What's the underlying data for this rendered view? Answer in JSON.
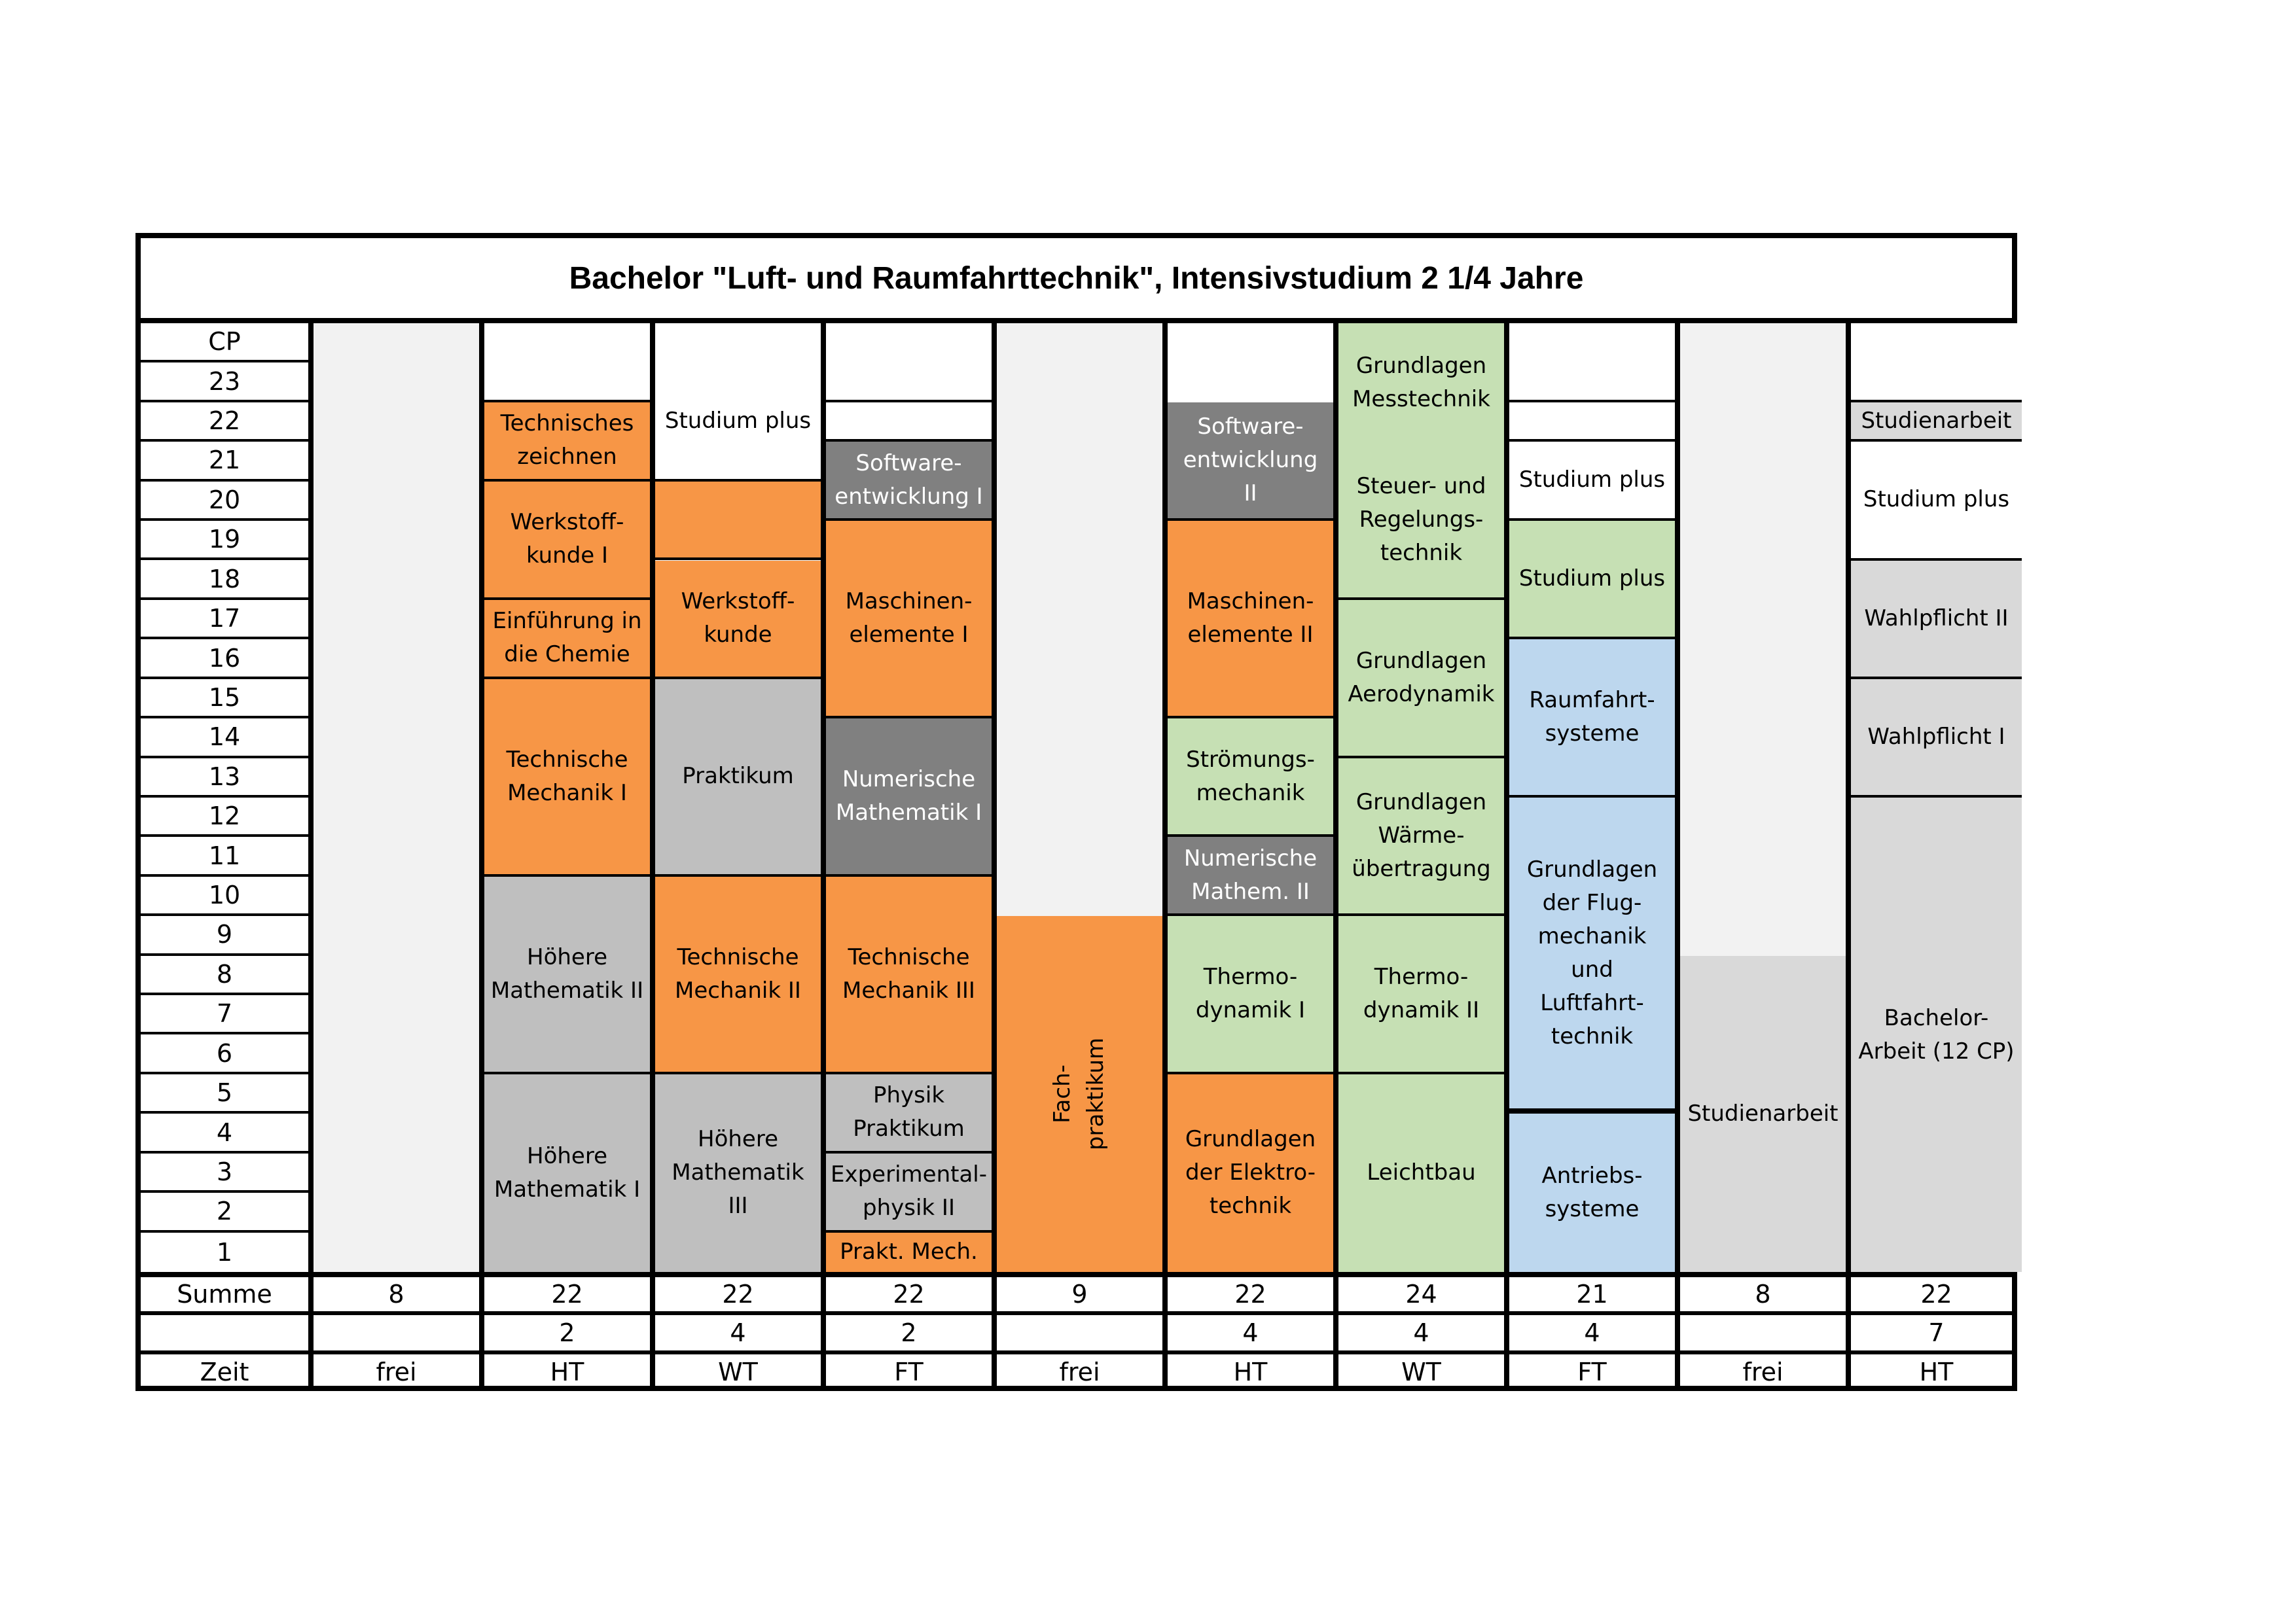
{
  "title": "Bachelor \"Luft- und Raumfahrttechnik\", Intensivstudium 2 1/4 Jahre",
  "axis": {
    "header": "CP",
    "labels": [
      "23",
      "22",
      "21",
      "20",
      "19",
      "18",
      "17",
      "16",
      "15",
      "14",
      "13",
      "12",
      "11",
      "10",
      "9",
      "8",
      "7",
      "6",
      "5",
      "4",
      "3",
      "2",
      "1"
    ]
  },
  "colors": {
    "orange": "#F79646",
    "dark_gray": "#808080",
    "mid_gray": "#BFBFBF",
    "light_gray": "#D9D9D9",
    "free_gray": "#F2F2F2",
    "green": "#C6E0B4",
    "blue": "#BDD7EE",
    "white": "#FFFFFF"
  },
  "columns": [
    {
      "blocks": [
        {
          "from": 0,
          "to": 24,
          "label": "",
          "color": "free"
        }
      ]
    },
    {
      "blocks": [
        {
          "from": 0,
          "to": 5,
          "label": "Höhere\nMathematik I",
          "color": "mid"
        },
        {
          "from": 5,
          "to": 10,
          "label": "Höhere\nMathematik II",
          "color": "mid"
        },
        {
          "from": 10,
          "to": 15,
          "label": "Technische\nMechanik I",
          "color": "orange"
        },
        {
          "from": 15,
          "to": 17,
          "label": "Einführung in\ndie Chemie",
          "color": "orange"
        },
        {
          "from": 17,
          "to": 20,
          "label": "Werkstoff-\nkunde I",
          "color": "orange"
        },
        {
          "from": 20,
          "to": 22,
          "label": "Technisches\nzeichnen",
          "color": "orange"
        },
        {
          "from": 22,
          "to": 23,
          "label": "",
          "color": "white"
        },
        {
          "from": 23,
          "to": 24,
          "label": "",
          "color": "white"
        }
      ]
    },
    {
      "blocks": [
        {
          "from": 0,
          "to": 5,
          "label": "Höhere\nMathematik\nIII",
          "color": "mid"
        },
        {
          "from": 5,
          "to": 10,
          "label": "Technische\nMechanik II",
          "color": "orange"
        },
        {
          "from": 10,
          "to": 15,
          "label": "Praktikum",
          "color": "mid"
        },
        {
          "from": 15,
          "to": 18,
          "label": "Werkstoff-\nkunde",
          "color": "orange"
        },
        {
          "from": 18,
          "to": 20,
          "label": "",
          "color": "orange"
        },
        {
          "from": 20,
          "to": 23,
          "label": "Studium plus",
          "color": "white"
        },
        {
          "from": 23,
          "to": 24,
          "label": "",
          "color": "white"
        }
      ]
    },
    {
      "blocks": [
        {
          "from": 0,
          "to": 1,
          "label": "Prakt. Mech.",
          "color": "orange"
        },
        {
          "from": 1,
          "to": 3,
          "label": "Experimental-\nphysik II",
          "color": "mid"
        },
        {
          "from": 3,
          "to": 5,
          "label": "Physik\nPraktikum",
          "color": "mid"
        },
        {
          "from": 5,
          "to": 10,
          "label": "Technische\nMechanik III",
          "color": "orange"
        },
        {
          "from": 10,
          "to": 14,
          "label": "Numerische\nMathematik I",
          "color": "dark",
          "light_text": true
        },
        {
          "from": 14,
          "to": 19,
          "label": "Maschinen-\nelemente I",
          "color": "orange"
        },
        {
          "from": 19,
          "to": 21,
          "label": "Software-\nentwicklung I",
          "color": "dark",
          "light_text": true
        },
        {
          "from": 21,
          "to": 22,
          "label": "",
          "color": "white"
        },
        {
          "from": 22,
          "to": 23,
          "label": "",
          "color": "white"
        },
        {
          "from": 23,
          "to": 24,
          "label": "",
          "color": "white"
        }
      ]
    },
    {
      "blocks": [
        {
          "from": 0,
          "to": 9,
          "label": "Fach-\npraktikum",
          "color": "orange",
          "vertical": true
        },
        {
          "from": 9,
          "to": 24,
          "label": "",
          "color": "free"
        }
      ]
    },
    {
      "blocks": [
        {
          "from": 0,
          "to": 5,
          "label": "Grundlagen\nder Elektro-\ntechnik",
          "color": "orange"
        },
        {
          "from": 5,
          "to": 9,
          "label": "Thermo-\ndynamik I",
          "color": "green"
        },
        {
          "from": 9,
          "to": 11,
          "label": "Numerische\nMathem. II",
          "color": "dark",
          "light_text": true
        },
        {
          "from": 11,
          "to": 14,
          "label": "Strömungs-\nmechanik",
          "color": "green"
        },
        {
          "from": 14,
          "to": 19,
          "label": "Maschinen-\nelemente II",
          "color": "orange"
        },
        {
          "from": 19,
          "to": 22,
          "label": "Software-\nentwicklung\nII",
          "color": "dark",
          "light_text": true
        },
        {
          "from": 22,
          "to": 24,
          "label": "",
          "color": "white"
        }
      ]
    },
    {
      "blocks": [
        {
          "from": 0,
          "to": 5,
          "label": "Leichtbau",
          "color": "green"
        },
        {
          "from": 5,
          "to": 9,
          "label": "Thermo-\ndynamik II",
          "color": "green"
        },
        {
          "from": 9,
          "to": 13,
          "label": "Grundlagen\nWärme-\nübertragung",
          "color": "green"
        },
        {
          "from": 13,
          "to": 17,
          "label": "Grundlagen\nAerodynamik",
          "color": "green"
        },
        {
          "from": 17,
          "to": 21,
          "label": "Steuer- und\nRegelungs-\ntechnik",
          "color": "green"
        },
        {
          "from": 21,
          "to": 24,
          "label": "Grundlagen\nMesstechnik",
          "color": "green"
        }
      ]
    },
    {
      "blocks": [
        {
          "from": 0,
          "to": 4,
          "label": "Antriebs-\nsysteme",
          "color": "blue",
          "thick": true
        },
        {
          "from": 4,
          "to": 12,
          "label": "Grundlagen\nder Flug-\nmechanik und\nLuftfahrt-\ntechnik",
          "color": "blue",
          "thick": true
        },
        {
          "from": 12,
          "to": 16,
          "label": "Raumfahrt-\nsysteme",
          "color": "blue"
        },
        {
          "from": 16,
          "to": 19,
          "label": "Studium plus",
          "color": "green"
        },
        {
          "from": 19,
          "to": 21,
          "label": "Studium plus",
          "color": "white"
        },
        {
          "from": 21,
          "to": 22,
          "label": "",
          "color": "white"
        },
        {
          "from": 22,
          "to": 23,
          "label": "",
          "color": "white"
        },
        {
          "from": 23,
          "to": 24,
          "label": "",
          "color": "white"
        }
      ]
    },
    {
      "blocks": [
        {
          "from": 0,
          "to": 8,
          "label": "Studienarbeit",
          "color": "light"
        },
        {
          "from": 8,
          "to": 24,
          "label": "",
          "color": "free"
        }
      ]
    },
    {
      "blocks": [
        {
          "from": 0,
          "to": 12,
          "label": "Bachelor-\nArbeit (12 CP)",
          "color": "light"
        },
        {
          "from": 12,
          "to": 15,
          "label": "Wahlpflicht I",
          "color": "light"
        },
        {
          "from": 15,
          "to": 18,
          "label": "Wahlpflicht II",
          "color": "light"
        },
        {
          "from": 18,
          "to": 21,
          "label": "Studium plus",
          "color": "white"
        },
        {
          "from": 21,
          "to": 22,
          "label": "Studienarbeit",
          "color": "light"
        },
        {
          "from": 22,
          "to": 23,
          "label": "",
          "color": "white"
        },
        {
          "from": 23,
          "to": 24,
          "label": "",
          "color": "white"
        }
      ]
    }
  ],
  "summary": {
    "summe": {
      "label": "Summe",
      "values": [
        "8",
        "22",
        "22",
        "22",
        "9",
        "22",
        "24",
        "21",
        "8",
        "22"
      ]
    },
    "extra": {
      "label": "",
      "values": [
        "",
        "2",
        "4",
        "2",
        "",
        "4",
        "4",
        "4",
        "",
        "7"
      ]
    },
    "zeit": {
      "label": "Zeit",
      "values": [
        "frei",
        "HT",
        "WT",
        "FT",
        "frei",
        "HT",
        "WT",
        "FT",
        "frei",
        "HT"
      ]
    }
  }
}
